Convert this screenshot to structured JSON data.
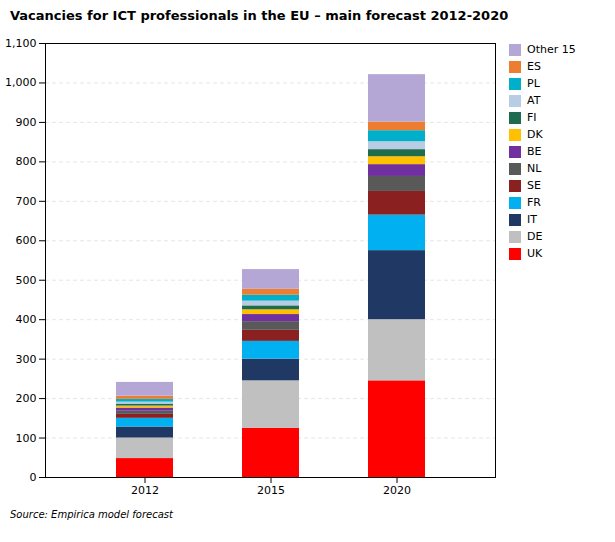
{
  "chart_data": {
    "type": "bar",
    "stacked": true,
    "title": "Vacancies for ICT professionals in the EU –  main forecast 2012-2020",
    "caption": "Source: Empirica model forecast",
    "categories": [
      "2012",
      "2015",
      "2020"
    ],
    "series": [
      {
        "name": "UK",
        "color": "#FF0000",
        "values": [
          48,
          125,
          245
        ]
      },
      {
        "name": "DE",
        "color": "#C0C0C0",
        "values": [
          52,
          120,
          155
        ]
      },
      {
        "name": "IT",
        "color": "#1F3864",
        "values": [
          28,
          55,
          175
        ]
      },
      {
        "name": "FR",
        "color": "#00B0F0",
        "values": [
          22,
          45,
          90
        ]
      },
      {
        "name": "SE",
        "color": "#8B2020",
        "values": [
          10,
          28,
          60
        ]
      },
      {
        "name": "NL",
        "color": "#595959",
        "values": [
          8,
          22,
          38
        ]
      },
      {
        "name": "BE",
        "color": "#7030A0",
        "values": [
          8,
          18,
          30
        ]
      },
      {
        "name": "DK",
        "color": "#FFC000",
        "values": [
          5,
          12,
          20
        ]
      },
      {
        "name": "FI",
        "color": "#1F6B4E",
        "values": [
          5,
          10,
          18
        ]
      },
      {
        "name": "AT",
        "color": "#B8CCE4",
        "values": [
          5,
          12,
          20
        ]
      },
      {
        "name": "PL",
        "color": "#00B0CA",
        "values": [
          7,
          15,
          28
        ]
      },
      {
        "name": "ES",
        "color": "#ED7D31",
        "values": [
          8,
          15,
          22
        ]
      },
      {
        "name": "Other 15",
        "color": "#B4A7D6",
        "values": [
          35,
          50,
          120
        ]
      }
    ],
    "ylim": [
      0,
      1100
    ],
    "yticks": [
      0,
      100,
      200,
      300,
      400,
      500,
      600,
      700,
      800,
      900,
      1000,
      1100
    ],
    "grid": true,
    "legend": "right"
  }
}
